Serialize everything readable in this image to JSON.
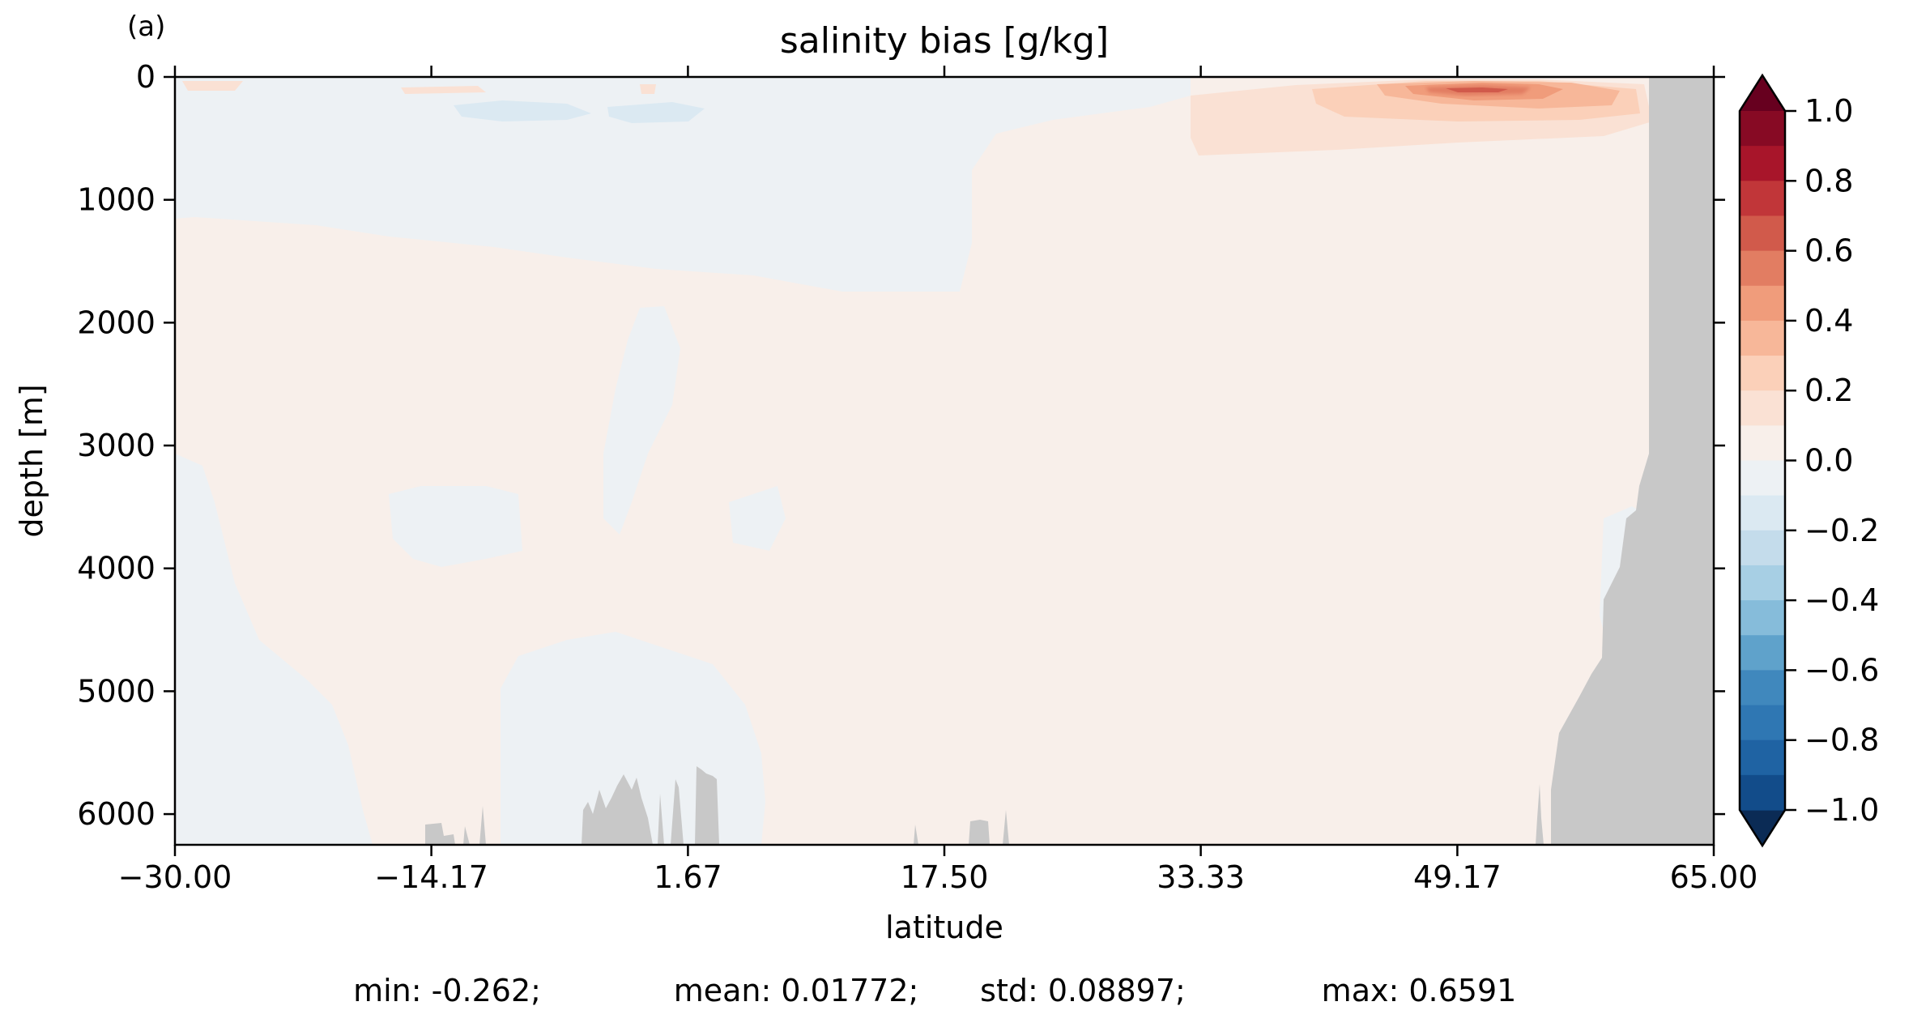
{
  "panel_label": "(a)",
  "chart_data": {
    "type": "heatmap",
    "title": "salinity bias [g/kg]",
    "xlabel": "latitude",
    "ylabel": "depth [m]",
    "xlim": [
      -30.0,
      65.0
    ],
    "ylim": [
      6250,
      0
    ],
    "y_inverted": true,
    "x_ticks": [
      -30.0,
      -14.17,
      1.67,
      17.5,
      33.33,
      49.17,
      65.0
    ],
    "x_tick_labels": [
      "−30.00",
      "−14.17",
      "1.67",
      "17.50",
      "33.33",
      "49.17",
      "65.00"
    ],
    "y_ticks": [
      0,
      1000,
      2000,
      3000,
      4000,
      5000,
      6000
    ],
    "y_tick_labels": [
      "0",
      "1000",
      "2000",
      "3000",
      "4000",
      "5000",
      "6000"
    ],
    "grid": false,
    "colormap": "RdBu_r",
    "colorbar": {
      "orientation": "vertical",
      "extend": "both",
      "range": [
        -1.0,
        1.0
      ],
      "tick_values": [
        1.0,
        0.8,
        0.6,
        0.4,
        0.2,
        0.0,
        -0.2,
        -0.4,
        -0.6,
        -0.8,
        -1.0
      ],
      "tick_labels": [
        "1.0",
        "0.8",
        "0.6",
        "0.4",
        "0.2",
        "0.0",
        "−0.2",
        "−0.4",
        "−0.6",
        "−0.8",
        "−1.0"
      ],
      "levels_top_to_bottom": [
        {
          "range": [
            0.9,
            1.0
          ],
          "color": "#870a24"
        },
        {
          "range": [
            0.8,
            0.9
          ],
          "color": "#a8152a"
        },
        {
          "range": [
            0.7,
            0.8
          ],
          "color": "#c13639"
        },
        {
          "range": [
            0.6,
            0.7
          ],
          "color": "#d15a4b"
        },
        {
          "range": [
            0.5,
            0.6
          ],
          "color": "#e27d62"
        },
        {
          "range": [
            0.4,
            0.5
          ],
          "color": "#f09c7b"
        },
        {
          "range": [
            0.3,
            0.4
          ],
          "color": "#f7b799"
        },
        {
          "range": [
            0.2,
            0.3
          ],
          "color": "#fbd0b9"
        },
        {
          "range": [
            0.1,
            0.2
          ],
          "color": "#fae1d4"
        },
        {
          "range": [
            0.0,
            0.1
          ],
          "color": "#f8efea"
        },
        {
          "range": [
            -0.1,
            0.0
          ],
          "color": "#edf1f4"
        },
        {
          "range": [
            -0.2,
            -0.1
          ],
          "color": "#dbe9f2"
        },
        {
          "range": [
            -0.3,
            -0.2
          ],
          "color": "#c4dceb"
        },
        {
          "range": [
            -0.4,
            -0.3
          ],
          "color": "#a7cfe4"
        },
        {
          "range": [
            -0.5,
            -0.4
          ],
          "color": "#86bcda"
        },
        {
          "range": [
            -0.6,
            -0.5
          ],
          "color": "#5fa2cb"
        },
        {
          "range": [
            -0.7,
            -0.6
          ],
          "color": "#4088bd"
        },
        {
          "range": [
            -0.8,
            -0.7
          ],
          "color": "#2f77b3"
        },
        {
          "range": [
            -0.9,
            -0.8
          ],
          "color": "#1f63a3"
        },
        {
          "range": [
            -1.0,
            -0.9
          ],
          "color": "#124c8a"
        }
      ],
      "over_color": "#67001f",
      "under_color": "#0b2b55"
    },
    "land_mask_color": "#c8c8c8",
    "field_features": [
      {
        "region": "background interior",
        "bias_band": [
          0.0,
          0.1
        ]
      },
      {
        "region": "upper 0-1000 m, 30S-0N",
        "bias_band": [
          -0.1,
          0.0
        ]
      },
      {
        "region": "south deep column 30S-10S",
        "bias_band": [
          -0.1,
          0.0
        ]
      },
      {
        "region": "bottom 5000-6200 m, 14S-5S",
        "bias_band": [
          -0.1,
          0.0
        ]
      },
      {
        "region": "near-surface 20S-0N",
        "bias_band": [
          -0.2,
          -0.1
        ]
      },
      {
        "region": "subsurface 40N-63N, 0-600 m",
        "bias_band": [
          0.1,
          0.3
        ]
      },
      {
        "region": "core near 51N at ~100 m",
        "bias_band": [
          0.5,
          0.7
        ]
      }
    ],
    "stats": [
      {
        "name": "min",
        "value": -0.262,
        "text": "min: -0.262;"
      },
      {
        "name": "mean",
        "value": 0.01772,
        "text": "mean: 0.01772;"
      },
      {
        "name": "std",
        "value": 0.08897,
        "text": "std: 0.08897;"
      },
      {
        "name": "max",
        "value": 0.6591,
        "text": "max: 0.6591"
      }
    ]
  }
}
